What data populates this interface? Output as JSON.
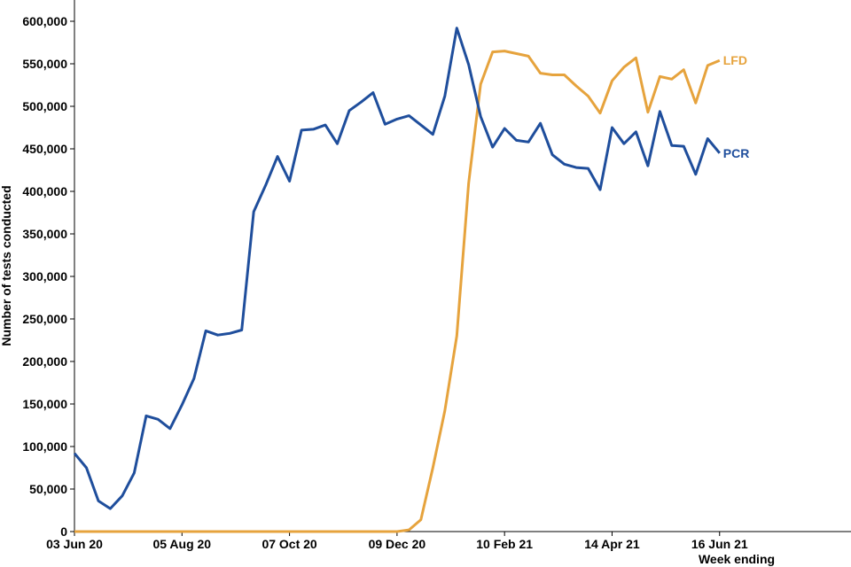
{
  "chart_data": {
    "type": "line",
    "ylabel": "Number of tests conducted",
    "xlabel": "Week ending",
    "ylim": [
      0,
      625000
    ],
    "yticks": [
      0,
      50000,
      100000,
      150000,
      200000,
      250000,
      300000,
      350000,
      400000,
      450000,
      500000,
      550000,
      600000
    ],
    "ytick_labels": [
      "0",
      "50,000",
      "100,000",
      "150,000",
      "200,000",
      "250,000",
      "300,000",
      "350,000",
      "400,000",
      "450,000",
      "500,000",
      "550,000",
      "600,000"
    ],
    "xticks": [
      {
        "index": 0,
        "label": "03 Jun 20"
      },
      {
        "index": 9,
        "label": "05 Aug 20"
      },
      {
        "index": 18,
        "label": "07 Oct 20"
      },
      {
        "index": 27,
        "label": "09 Dec 20"
      },
      {
        "index": 36,
        "label": "10 Feb 21"
      },
      {
        "index": 45,
        "label": "14 Apr 21"
      },
      {
        "index": 54,
        "label": "16 Jun 21"
      }
    ],
    "x_count": 55,
    "x_extent": 65,
    "grid": false,
    "series": [
      {
        "name": "PCR",
        "color": "#1f4e9c",
        "values": [
          92000,
          75000,
          36000,
          27000,
          42000,
          69000,
          136000,
          132000,
          121000,
          149000,
          180000,
          236000,
          231000,
          233000,
          237000,
          376000,
          407000,
          441000,
          412000,
          472000,
          473000,
          478000,
          456000,
          495000,
          505000,
          516000,
          479000,
          485000,
          489000,
          478000,
          467000,
          512000,
          592000,
          549000,
          488000,
          452000,
          474000,
          460000,
          458000,
          480000,
          443000,
          432000,
          428000,
          427000,
          402000,
          475000,
          456000,
          470000,
          430000,
          494000,
          454000,
          453000,
          420000,
          462000,
          445000
        ]
      },
      {
        "name": "LFD",
        "color": "#e6a33d",
        "values": [
          0,
          0,
          0,
          0,
          0,
          0,
          0,
          0,
          0,
          0,
          0,
          0,
          0,
          0,
          0,
          0,
          0,
          0,
          0,
          0,
          0,
          0,
          0,
          0,
          0,
          0,
          0,
          0,
          2000,
          14000,
          75000,
          142000,
          230000,
          410000,
          526000,
          564000,
          565000,
          562000,
          559000,
          539000,
          537000,
          537000,
          524000,
          512000,
          492000,
          530000,
          546000,
          557000,
          493000,
          535000,
          532000,
          543000,
          504000,
          548000,
          554000
        ]
      }
    ]
  }
}
